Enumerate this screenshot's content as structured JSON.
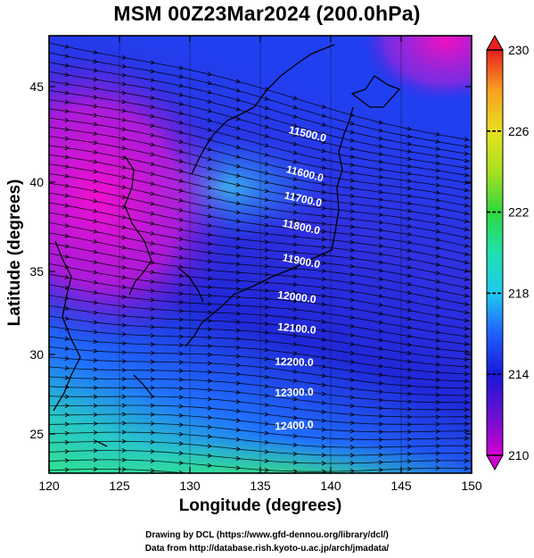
{
  "title": "MSM 00Z23Mar2024 (200.0hPa)",
  "axes": {
    "xlabel": "Longitude (degrees)",
    "ylabel": "Latitude  (degrees)",
    "x_ticks": [
      "120",
      "125",
      "130",
      "135",
      "140",
      "145",
      "150"
    ],
    "y_ticks": [
      "25",
      "30",
      "35",
      "40",
      "45"
    ]
  },
  "colorbar": {
    "labels": [
      "230",
      "226",
      "222",
      "218",
      "214",
      "210"
    ],
    "min": 210,
    "max": 230,
    "colors": [
      "#d000d0",
      "#7018d8",
      "#1818d8",
      "#2060ff",
      "#20c8e8",
      "#20e0b0",
      "#30d830",
      "#a8e020",
      "#e8e020",
      "#f8a020",
      "#f04020",
      "#e02020"
    ]
  },
  "contours": [
    {
      "label": "11500.0"
    },
    {
      "label": "11600.0"
    },
    {
      "label": "11700.0"
    },
    {
      "label": "11800.0"
    },
    {
      "label": "11900.0"
    },
    {
      "label": "12000.0"
    },
    {
      "label": "12100.0"
    },
    {
      "label": "12200.0"
    },
    {
      "label": "12300.0"
    },
    {
      "label": "12400.0"
    }
  ],
  "credits": {
    "line1": "Drawing by DCL (https://www.gfd-dennou.org/library/dcl/)",
    "line2": "Data from http://database.rish.kyoto-u.ac.jp/arch/jmadata/"
  }
}
